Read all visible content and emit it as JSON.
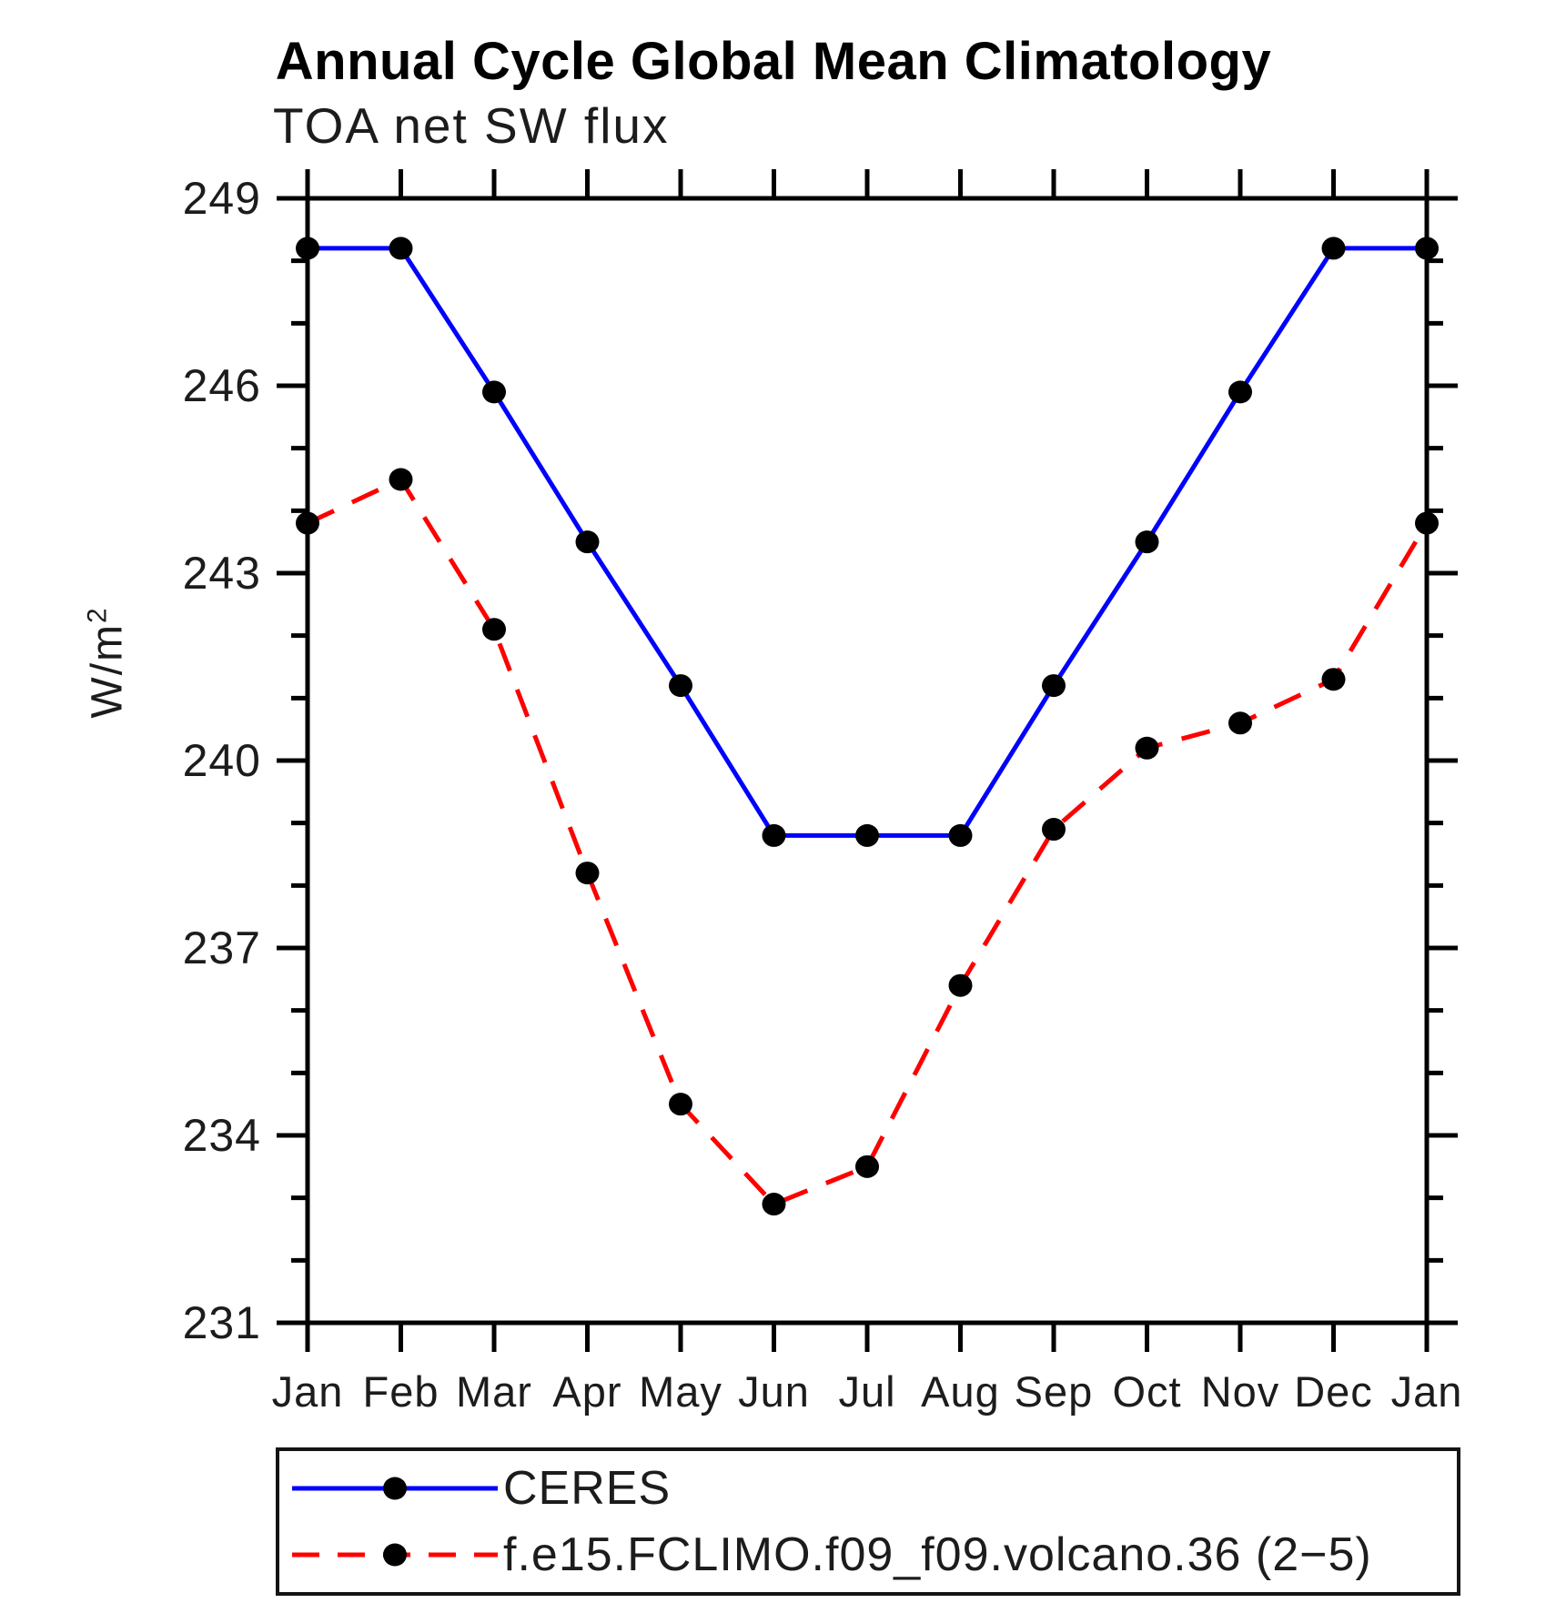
{
  "title": "Annual Cycle Global Mean Climatology",
  "subtitle": "TOA net SW flux",
  "y_axis": {
    "label_base": "W/m",
    "label_exp": "2"
  },
  "chart_data": {
    "type": "line",
    "title": "Annual Cycle Global Mean Climatology",
    "subtitle": "TOA net SW flux",
    "ylabel": "W/m^2",
    "xlabel": "",
    "x_categories": [
      "Jan",
      "Feb",
      "Mar",
      "Apr",
      "May",
      "Jun",
      "Jul",
      "Aug",
      "Sep",
      "Oct",
      "Nov",
      "Dec",
      "Jan"
    ],
    "ylim": [
      231,
      249
    ],
    "y_major_ticks": [
      231,
      234,
      237,
      240,
      243,
      246,
      249
    ],
    "y_minor_step": 1,
    "grid": false,
    "legend_position": "bottom",
    "series": [
      {
        "name": "CERES",
        "color": "#0000ff",
        "style": "solid",
        "marker": "filled-circle",
        "marker_color": "#000000",
        "values": [
          248.2,
          248.2,
          245.9,
          243.5,
          241.2,
          238.8,
          238.8,
          238.8,
          241.2,
          243.5,
          245.9,
          248.2,
          248.2
        ]
      },
      {
        "name": "f.e15.FCLIMO.f09_f09.volcano.36 (2−5)",
        "color": "#ff0000",
        "style": "dashed",
        "marker": "filled-circle",
        "marker_color": "#000000",
        "values": [
          243.8,
          244.5,
          242.1,
          238.2,
          234.5,
          232.9,
          233.5,
          236.4,
          238.9,
          240.2,
          240.6,
          241.3,
          243.8
        ]
      }
    ]
  }
}
